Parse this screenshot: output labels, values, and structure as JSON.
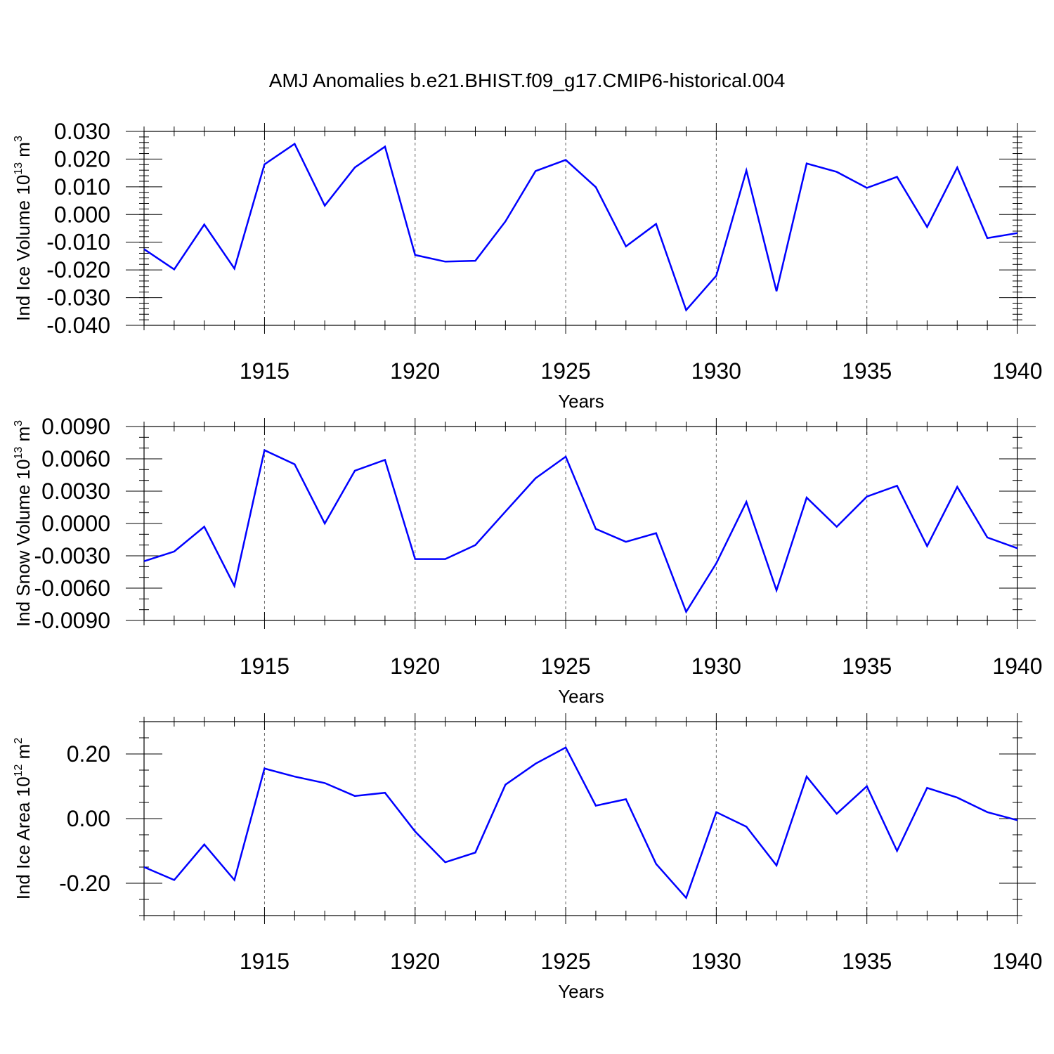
{
  "title": "AMJ Anomalies b.e21.BHIST.f09_g17.CMIP6-historical.004",
  "colors": {
    "series": "#0000ff",
    "axes": "#000000",
    "grid": "#666666"
  },
  "chart_data": [
    {
      "type": "line",
      "ylabel": {
        "prefix": "Ind Ice Volume 10",
        "exponent": "13",
        "unit": " m",
        "unit_exponent": "3"
      },
      "xlabel": "Years",
      "xlim": [
        1911,
        1940
      ],
      "ylim": [
        -0.04,
        0.03
      ],
      "yticks": [
        -0.04,
        -0.03,
        -0.02,
        -0.01,
        0.0,
        0.01,
        0.02,
        0.03
      ],
      "ytick_labels": [
        "-0.040",
        "-0.030",
        "-0.020",
        "-0.010",
        "0.000",
        "0.010",
        "0.020",
        "0.030"
      ],
      "yminor_step": 0.002,
      "xticks": [
        1915,
        1920,
        1925,
        1930,
        1935,
        1940
      ],
      "xtick_labels": [
        "1915",
        "1920",
        "1925",
        "1930",
        "1935",
        "1940"
      ],
      "x": [
        1911,
        1912,
        1913,
        1914,
        1915,
        1916,
        1917,
        1918,
        1919,
        1920,
        1921,
        1922,
        1923,
        1924,
        1925,
        1926,
        1927,
        1928,
        1929,
        1930,
        1931,
        1932,
        1933,
        1934,
        1935,
        1936,
        1937,
        1938,
        1939,
        1940
      ],
      "series": [
        {
          "name": "Ind Ice Volume",
          "values": [
            -0.0125,
            -0.0198,
            -0.0036,
            -0.0195,
            0.0181,
            0.0255,
            0.0032,
            0.017,
            0.0245,
            -0.0146,
            -0.017,
            -0.0167,
            -0.0025,
            0.0157,
            0.0197,
            0.0099,
            -0.0115,
            -0.0034,
            -0.0345,
            -0.0221,
            0.0159,
            -0.0277,
            0.0184,
            0.0154,
            0.0096,
            0.0136,
            -0.0045,
            0.017,
            -0.0085,
            -0.0067
          ]
        }
      ]
    },
    {
      "type": "line",
      "ylabel": {
        "prefix": "Ind Snow Volume 10",
        "exponent": "13",
        "unit": " m",
        "unit_exponent": "3"
      },
      "xlabel": "Years",
      "xlim": [
        1911,
        1940
      ],
      "ylim": [
        -0.009,
        0.009
      ],
      "yticks": [
        -0.009,
        -0.006,
        -0.003,
        0.0,
        0.003,
        0.006,
        0.009
      ],
      "ytick_labels": [
        "-0.0090",
        "-0.0060",
        "-0.0030",
        "0.0000",
        "0.0030",
        "0.0060",
        "0.0090"
      ],
      "yminor_step": 0.001,
      "xticks": [
        1915,
        1920,
        1925,
        1930,
        1935,
        1940
      ],
      "xtick_labels": [
        "1915",
        "1920",
        "1925",
        "1930",
        "1935",
        "1940"
      ],
      "x": [
        1911,
        1912,
        1913,
        1914,
        1915,
        1916,
        1917,
        1918,
        1919,
        1920,
        1921,
        1922,
        1923,
        1924,
        1925,
        1926,
        1927,
        1928,
        1929,
        1930,
        1931,
        1932,
        1933,
        1934,
        1935,
        1936,
        1937,
        1938,
        1939,
        1940
      ],
      "series": [
        {
          "name": "Ind Snow Volume",
          "values": [
            -0.0035,
            -0.0026,
            -0.0003,
            -0.0058,
            0.0068,
            0.0055,
            0.0,
            0.0049,
            0.0059,
            -0.0033,
            -0.0033,
            -0.002,
            0.0011,
            0.0042,
            0.0062,
            -0.0005,
            -0.0017,
            -0.0009,
            -0.0082,
            -0.0037,
            0.002,
            -0.0062,
            0.0024,
            -0.0003,
            0.0025,
            0.0035,
            -0.0021,
            0.0034,
            -0.0013,
            -0.0023
          ]
        }
      ]
    },
    {
      "type": "line",
      "ylabel": {
        "prefix": "Ind Ice Area 10",
        "exponent": "12",
        "unit": " m",
        "unit_exponent": "2"
      },
      "xlabel": "Years",
      "xlim": [
        1911,
        1940
      ],
      "ylim": [
        -0.3,
        0.3
      ],
      "yticks": [
        -0.2,
        0.0,
        0.2
      ],
      "ytick_labels": [
        "-0.20",
        "0.00",
        "0.20"
      ],
      "yminor_step": 0.05,
      "xticks": [
        1915,
        1920,
        1925,
        1930,
        1935,
        1940
      ],
      "xtick_labels": [
        "1915",
        "1920",
        "1925",
        "1930",
        "1935",
        "1940"
      ],
      "x": [
        1911,
        1912,
        1913,
        1914,
        1915,
        1916,
        1917,
        1918,
        1919,
        1920,
        1921,
        1922,
        1923,
        1924,
        1925,
        1926,
        1927,
        1928,
        1929,
        1930,
        1931,
        1932,
        1933,
        1934,
        1935,
        1936,
        1937,
        1938,
        1939,
        1940
      ],
      "series": [
        {
          "name": "Ind Ice Area",
          "values": [
            -0.15,
            -0.19,
            -0.08,
            -0.19,
            0.155,
            0.13,
            0.11,
            0.07,
            0.08,
            -0.04,
            -0.135,
            -0.105,
            0.105,
            0.17,
            0.22,
            0.04,
            0.06,
            -0.14,
            -0.245,
            0.02,
            -0.025,
            -0.145,
            0.13,
            0.015,
            0.1,
            -0.1,
            0.095,
            0.065,
            0.02,
            -0.005
          ]
        }
      ]
    }
  ]
}
